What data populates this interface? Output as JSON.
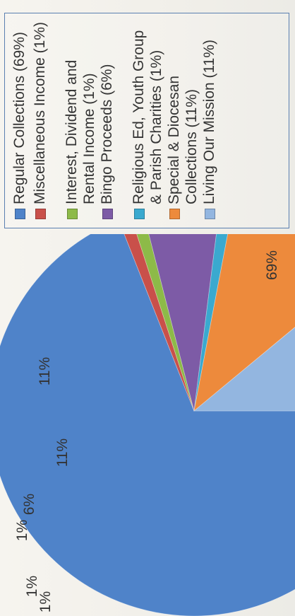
{
  "chart_data": {
    "type": "pie",
    "title": "",
    "legend_position": "right",
    "series": [
      {
        "label": "Regular Collections (69%)",
        "value": 69,
        "data_label": "69%",
        "color": "#4f83c9"
      },
      {
        "label": "Miscellaneous Income (1%)",
        "value": 1,
        "data_label": "1%",
        "color": "#c9504a"
      },
      {
        "label": "Interest, Dividend and\nRental Income (1%)",
        "value": 1,
        "data_label": "1%",
        "color": "#8dba48"
      },
      {
        "label": "Bingo Proceeds (6%)",
        "value": 6,
        "data_label": "6%",
        "color": "#7d5ba6"
      },
      {
        "label": "Religious Ed, Youth Group\n& Parish Charities  (1%)",
        "value": 1,
        "data_label": "1%",
        "color": "#3aa9cf"
      },
      {
        "label": "Special & Diocesan\nCollections (11%)",
        "value": 11,
        "data_label": "11%",
        "color": "#ed8a3c"
      },
      {
        "label": "Living Our Mission (11%)",
        "value": 11,
        "data_label": "11%",
        "color": "#93b6e0"
      }
    ]
  }
}
